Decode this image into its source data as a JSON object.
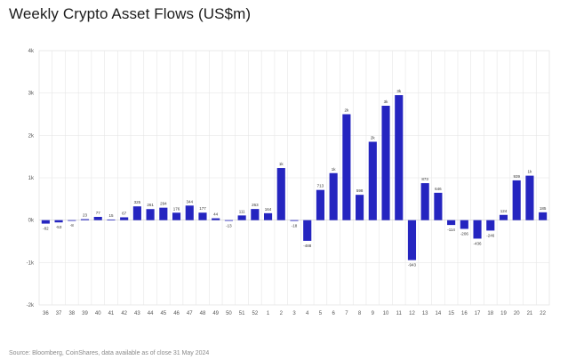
{
  "title": "Weekly Crypto Asset Flows (US$m)",
  "source": "Source: Bloomberg, CoinShares, data available as of close 31 May 2024",
  "colors": {
    "bar": "#2525c0",
    "grid": "#e6e6e6",
    "axis": "#cfcfcf"
  },
  "chart_data": {
    "type": "bar",
    "title": "Weekly Crypto Asset Flows (US$m)",
    "xlabel": "",
    "ylabel": "",
    "ylim": [
      -2000,
      4000
    ],
    "yticks": [
      "-2k",
      "-1k",
      "0k",
      "1k",
      "2k",
      "3k",
      "4k"
    ],
    "grid": true,
    "categories": [
      "36",
      "37",
      "38",
      "39",
      "40",
      "41",
      "42",
      "43",
      "44",
      "45",
      "46",
      "47",
      "48",
      "49",
      "50",
      "51",
      "52",
      "1",
      "2",
      "3",
      "4",
      "5",
      "6",
      "7",
      "8",
      "9",
      "10",
      "11",
      "12",
      "13",
      "14",
      "15",
      "16",
      "17",
      "18",
      "19",
      "20",
      "21",
      "22"
    ],
    "values": [
      -82,
      -53,
      -8,
      23,
      77,
      15,
      67,
      325,
      261,
      294,
      176,
      344,
      177,
      44,
      -13,
      111,
      263,
      164,
      1230,
      -18,
      -488,
      713,
      1110,
      2500,
      598,
      1850,
      2700,
      2950,
      -943,
      873,
      646,
      -114,
      -206,
      -436,
      -246,
      124,
      939,
      1050,
      185
    ],
    "data_labels": [
      "-82",
      "-53",
      "-8",
      "23",
      "77",
      "15",
      "67",
      "325",
      "261",
      "294",
      "176",
      "344",
      "177",
      "44",
      "-13",
      "111",
      "263",
      "164",
      "1k",
      "-18",
      "-488",
      "713",
      "1k",
      "2k",
      "598",
      "2k",
      "3k",
      "3k",
      "-943",
      "873",
      "646",
      "-114",
      "-206",
      "-436",
      "-246",
      "124",
      "939",
      "1k",
      "185"
    ]
  }
}
